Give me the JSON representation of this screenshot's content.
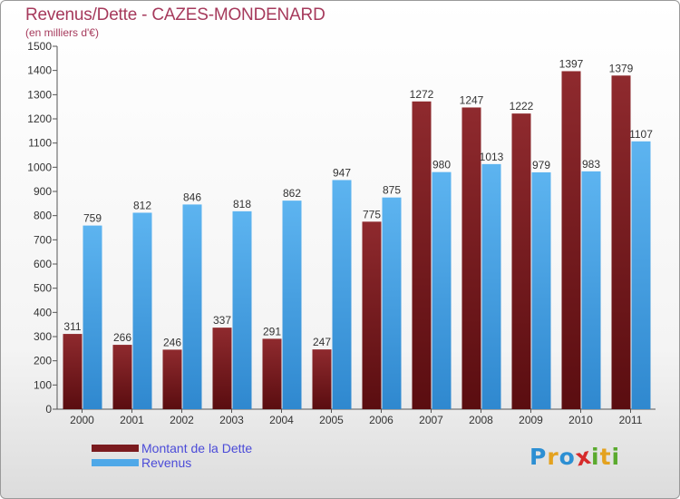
{
  "title": "Revenus/Dette - CAZES-MONDENARD",
  "subtitle": "(en milliers d'€)",
  "logo": {
    "text": "Proxiti",
    "letters": [
      {
        "ch": "P",
        "color": "#2c8fd3"
      },
      {
        "ch": "r",
        "color": "#e4a21f"
      },
      {
        "ch": "o",
        "color": "#2c8fd3"
      },
      {
        "ch": "x",
        "color": "#d62b2b"
      },
      {
        "ch": "i",
        "color": "#5aaa2e"
      },
      {
        "ch": "t",
        "color": "#e4a21f"
      },
      {
        "ch": "i",
        "color": "#5aaa2e"
      }
    ]
  },
  "colors": {
    "debt": "#7a1a1e",
    "revenue": "#4fa8e8",
    "title": "#a63a5c",
    "legend_text": "#4b4bd8"
  },
  "chart_data": {
    "type": "bar",
    "categories": [
      "2000",
      "2001",
      "2002",
      "2003",
      "2004",
      "2005",
      "2006",
      "2007",
      "2008",
      "2009",
      "2010",
      "2011"
    ],
    "series": [
      {
        "name": "Montant de la Dette",
        "values": [
          311,
          266,
          246,
          337,
          291,
          247,
          775,
          1272,
          1247,
          1222,
          1397,
          1379
        ]
      },
      {
        "name": "Revenus",
        "values": [
          759,
          812,
          846,
          818,
          862,
          947,
          875,
          980,
          1013,
          979,
          983,
          1107
        ]
      }
    ],
    "ylim": [
      0,
      1500
    ],
    "yticks": [
      0,
      100,
      200,
      300,
      400,
      500,
      600,
      700,
      800,
      900,
      1000,
      1100,
      1200,
      1300,
      1400,
      1500
    ],
    "grid": false,
    "legend": "bottom-left"
  }
}
